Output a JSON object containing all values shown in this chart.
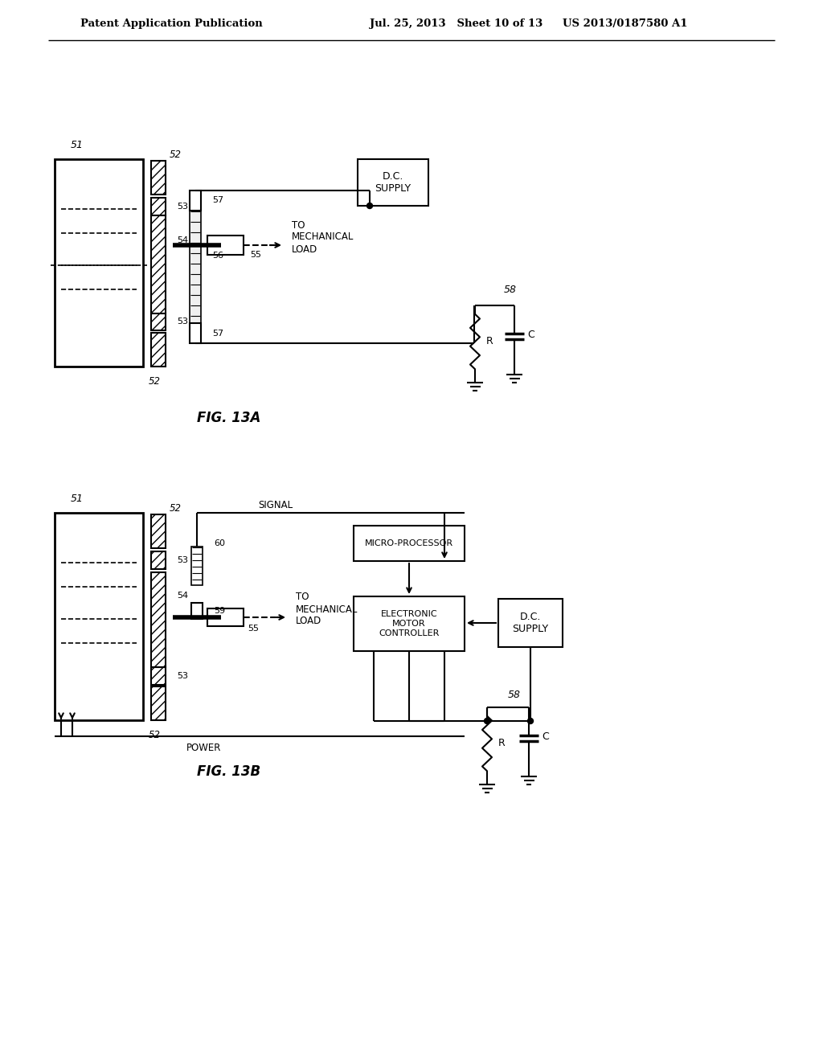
{
  "background_color": "#ffffff",
  "header_text_left": "Patent Application Publication",
  "header_text_mid": "Jul. 25, 2013   Sheet 10 of 13",
  "header_text_right": "US 2013/0187580 A1",
  "fig13a_label": "FIG. 13A",
  "fig13b_label": "FIG. 13B",
  "line_color": "#000000",
  "text_color": "#000000"
}
